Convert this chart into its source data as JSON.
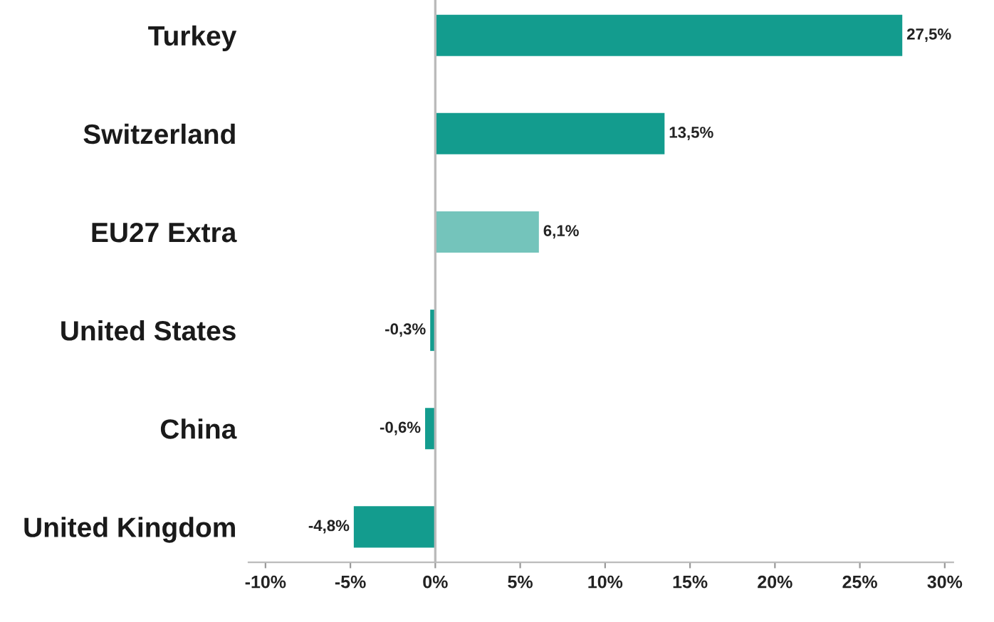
{
  "chart_data": {
    "type": "bar",
    "orientation": "horizontal",
    "categories": [
      "Turkey",
      "Switzerland",
      "EU27 Extra",
      "United States",
      "China",
      "United Kingdom"
    ],
    "values": [
      27.5,
      13.5,
      6.1,
      -0.3,
      -0.6,
      -4.8
    ],
    "value_labels": [
      "27,5%",
      "13,5%",
      "6,1%",
      "-0,3%",
      "-0,6%",
      "-4,8%"
    ],
    "colors": [
      "#139c8e",
      "#139c8e",
      "#74c4bb",
      "#139c8e",
      "#139c8e",
      "#139c8e"
    ],
    "xlim": [
      -11,
      30.5
    ],
    "xticks": [
      {
        "value": -10,
        "label": "-10%"
      },
      {
        "value": -5,
        "label": "-5%"
      },
      {
        "value": 0,
        "label": "0%"
      },
      {
        "value": 5,
        "label": "5%"
      },
      {
        "value": 10,
        "label": "10%"
      },
      {
        "value": 15,
        "label": "15%"
      },
      {
        "value": 20,
        "label": "20%"
      },
      {
        "value": 25,
        "label": "25%"
      },
      {
        "value": 30,
        "label": "30%"
      }
    ],
    "ref_lines": [
      {
        "axis": "x",
        "value": 0,
        "color": "#bbbbbb"
      }
    ],
    "grid": false,
    "legend": false
  }
}
